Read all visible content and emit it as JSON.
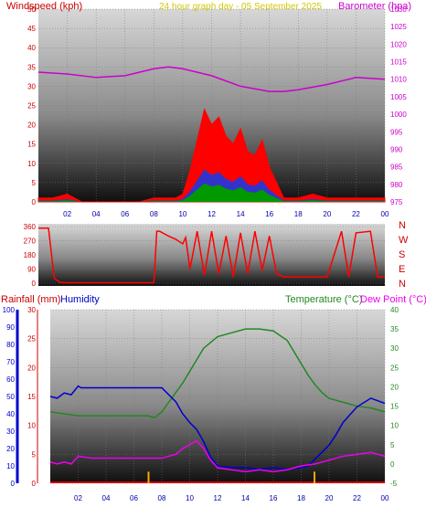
{
  "header": {
    "left_title": "Windspeed (kph)",
    "center_title": "24 hour graph day - 05 September 2025",
    "right_title": "Barometer (hpa)"
  },
  "compass": {
    "labels": [
      "N",
      "W",
      "S",
      "E",
      "N"
    ]
  },
  "lower_header": {
    "rain_label": "Rainfall (mm)",
    "humidity_label": "Humidity",
    "temp_label": "Temperature (°C)",
    "dew_label": "Dew Point (°C)"
  },
  "colors": {
    "wind": "#ff0000",
    "gust_overlay": "#3333cc",
    "wind_green": "#009900",
    "barometer": "#cc00cc",
    "humidity": "#0000cc",
    "temperature": "#228822",
    "dew_point": "#ee00ee",
    "rain": "#ffaa00",
    "axis_red": "#cc0000",
    "title_yellow": "#d4c800"
  },
  "chart_data": [
    {
      "type": "line",
      "name": "wind-barometer",
      "xlabel": "",
      "x_ticks": [
        "02",
        "04",
        "06",
        "08",
        "10",
        "12",
        "14",
        "16",
        "18",
        "20",
        "22",
        "00"
      ],
      "y_left": {
        "label": "Windspeed (kph)",
        "lim": [
          0,
          50
        ],
        "ticks": [
          0,
          5,
          10,
          15,
          20,
          25,
          30,
          35,
          40,
          45,
          50
        ]
      },
      "y_right": {
        "label": "Barometer (hpa)",
        "lim": [
          975,
          1030
        ],
        "ticks": [
          975,
          980,
          985,
          990,
          995,
          1000,
          1005,
          1010,
          1015,
          1020,
          1025,
          1030
        ]
      },
      "series": [
        {
          "name": "Windspeed (kph)",
          "axis": "left",
          "x": [
            0,
            1,
            2,
            3,
            4,
            5,
            6,
            7,
            8,
            9,
            9.5,
            10,
            10.5,
            11,
            11.5,
            12,
            12.5,
            13,
            13.5,
            14,
            14.5,
            15,
            15.5,
            16,
            16.5,
            17,
            18,
            19,
            20,
            21,
            22,
            23,
            24
          ],
          "y": [
            1,
            1,
            2,
            0,
            0,
            0,
            0,
            0,
            1,
            1,
            1,
            2,
            8,
            16,
            24,
            20,
            22,
            17,
            15,
            19,
            13,
            12,
            16,
            9,
            5,
            1,
            1,
            2,
            1,
            1,
            1,
            1,
            1
          ]
        },
        {
          "name": "Barometer (hpa)",
          "axis": "right",
          "x": [
            0,
            2,
            4,
            6,
            8,
            9,
            10,
            12,
            14,
            16,
            17,
            18,
            20,
            22,
            24
          ],
          "y": [
            1012,
            1011.5,
            1010.5,
            1011,
            1013,
            1013.5,
            1013,
            1011,
            1008,
            1006.5,
            1006.5,
            1007,
            1008.5,
            1010.5,
            1010
          ]
        }
      ]
    },
    {
      "type": "line",
      "name": "wind-direction",
      "x_ticks": [],
      "y_left": {
        "lim": [
          0,
          360
        ],
        "ticks": [
          0,
          90,
          180,
          270,
          360
        ]
      },
      "series": [
        {
          "name": "Wind direction",
          "x": [
            0,
            0.7,
            1.1,
            1.5,
            2,
            4,
            6,
            7,
            8,
            8.2,
            8.4,
            9,
            9.5,
            10,
            10.2,
            10.5,
            11,
            11.5,
            12,
            12.5,
            13,
            13.5,
            14,
            14.5,
            15,
            15.5,
            16,
            16.5,
            17,
            18,
            19,
            20,
            21,
            21.5,
            22,
            23,
            23.5,
            24
          ],
          "y": [
            350,
            350,
            30,
            5,
            3,
            3,
            3,
            3,
            3,
            330,
            330,
            300,
            280,
            250,
            290,
            90,
            330,
            50,
            330,
            60,
            300,
            40,
            320,
            60,
            330,
            80,
            300,
            60,
            40,
            40,
            40,
            40,
            330,
            40,
            320,
            330,
            40,
            40
          ]
        }
      ]
    },
    {
      "type": "line",
      "name": "rain-humidity-temperature",
      "x_ticks": [
        "02",
        "04",
        "06",
        "08",
        "10",
        "12",
        "14",
        "16",
        "18",
        "20",
        "22",
        "00"
      ],
      "y_left_humidity": {
        "label": "Humidity",
        "lim": [
          0,
          100
        ],
        "ticks": [
          0,
          10,
          20,
          30,
          40,
          50,
          60,
          70,
          80,
          90,
          100
        ]
      },
      "y_left_rain": {
        "label": "Rainfall (mm)",
        "lim": [
          0,
          30
        ],
        "ticks": [
          0,
          5,
          10,
          15,
          20,
          25,
          30
        ]
      },
      "y_right": {
        "label": "Temperature (°C)",
        "lim": [
          -5,
          40
        ],
        "ticks": [
          -5,
          0,
          5,
          10,
          15,
          20,
          25,
          30,
          35,
          40
        ]
      },
      "series": [
        {
          "name": "Humidity",
          "axis": "humidity",
          "x": [
            0,
            0.5,
            1,
            1.5,
            2,
            2.2,
            3,
            4,
            6,
            7,
            8,
            9,
            9.5,
            10,
            10.5,
            11,
            11.5,
            12,
            13,
            14,
            15,
            16,
            17,
            18,
            18.5,
            19,
            19.5,
            20,
            20.5,
            21,
            22,
            23,
            24
          ],
          "y": [
            50,
            49,
            52,
            51,
            56,
            55,
            55,
            55,
            55,
            55,
            55,
            47,
            40,
            35,
            31,
            24,
            15,
            10,
            9,
            9,
            8,
            9,
            8,
            9,
            10,
            14,
            18,
            22,
            28,
            35,
            44,
            49,
            46
          ]
        },
        {
          "name": "Temperature (°C)",
          "axis": "right",
          "x": [
            0,
            1,
            2,
            3,
            4,
            5,
            6,
            7,
            7.5,
            8,
            8.5,
            9,
            9.5,
            10,
            10.5,
            11,
            12,
            13,
            14,
            15,
            16,
            17,
            17.5,
            18,
            18.5,
            19,
            19.5,
            20,
            21,
            22,
            23,
            24
          ],
          "y": [
            13.5,
            13,
            12.5,
            12.5,
            12.5,
            12.5,
            12.5,
            12.5,
            12,
            13.5,
            16,
            18.5,
            21,
            24,
            27,
            30,
            33,
            34,
            35,
            35,
            34.5,
            32,
            29,
            26,
            23,
            20.5,
            18.5,
            17,
            16,
            15,
            14.5,
            13.5
          ]
        },
        {
          "name": "Dew Point (°C)",
          "axis": "right",
          "x": [
            0,
            0.5,
            1,
            1.5,
            2,
            3,
            4,
            5,
            6,
            7,
            8,
            8.5,
            9,
            9.5,
            10,
            10.5,
            11,
            11.5,
            12,
            13,
            14,
            15,
            16,
            17,
            18,
            19,
            20,
            21,
            22,
            23,
            24
          ],
          "y": [
            0.5,
            0,
            0.5,
            0,
            2,
            1.5,
            1.5,
            1.5,
            1.5,
            1.5,
            1.5,
            2,
            2.5,
            4,
            5,
            6,
            4,
            1,
            -1,
            -1.5,
            -2,
            -1.5,
            -2,
            -1.5,
            -0.5,
            0,
            1,
            2,
            2.5,
            3,
            2
          ]
        },
        {
          "name": "Rainfall (mm)",
          "axis": "rain",
          "type": "bar",
          "x": [
            7.05,
            18.95
          ],
          "y": [
            2,
            2
          ]
        }
      ]
    }
  ]
}
